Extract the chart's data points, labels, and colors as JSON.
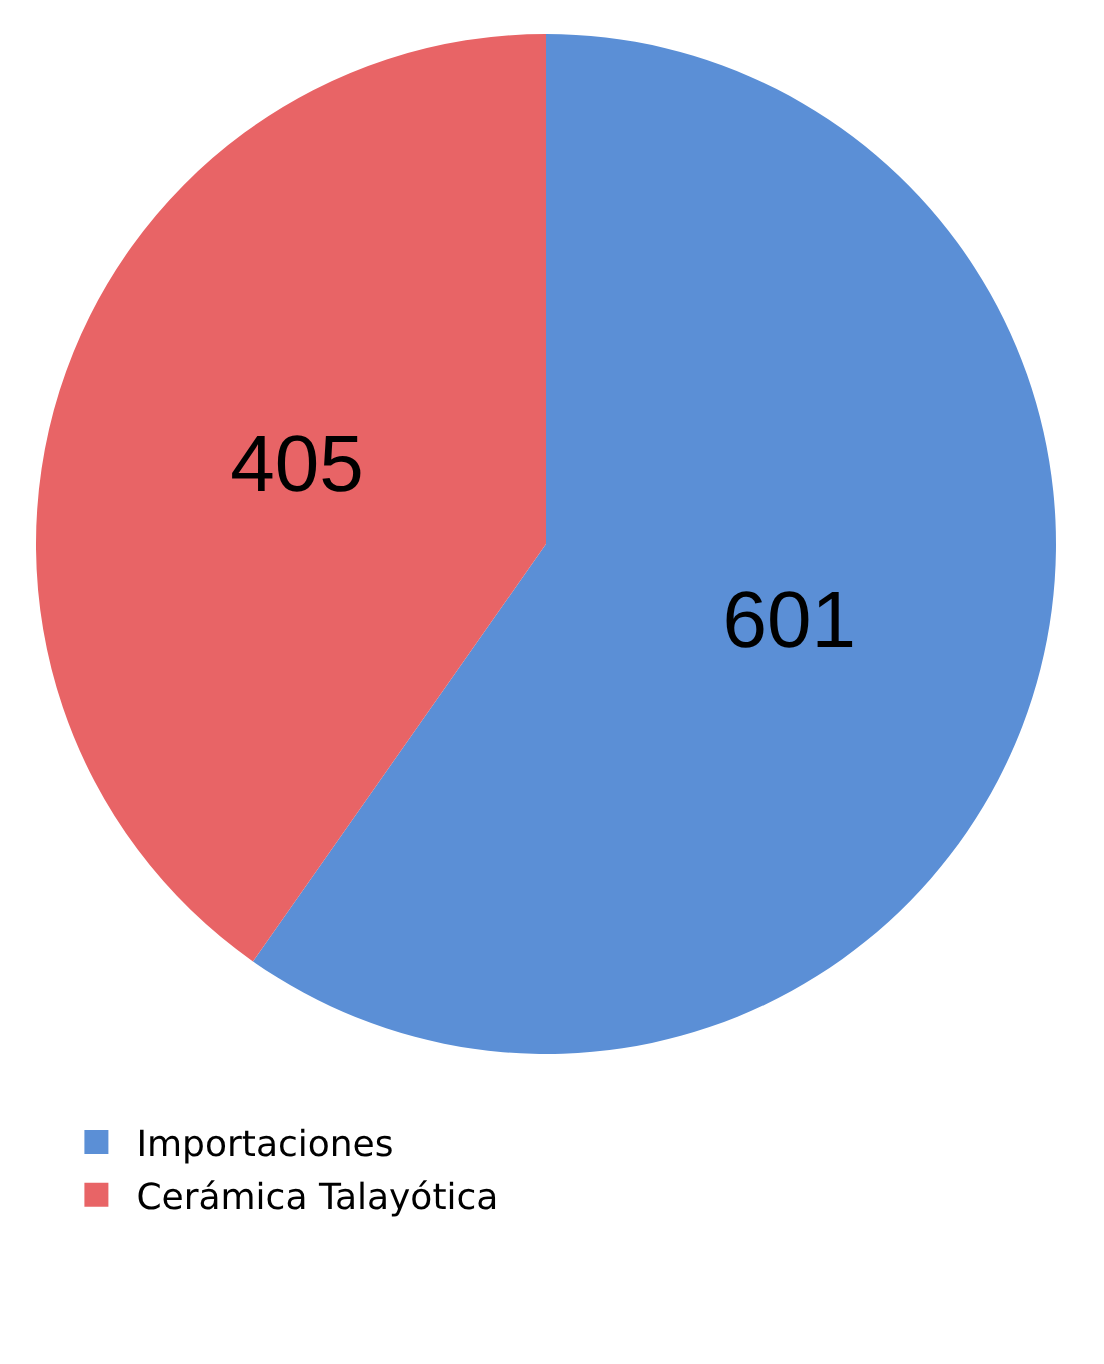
{
  "chart_data": {
    "type": "pie",
    "categories": [
      "Importaciones",
      "Cerámica Talayótica"
    ],
    "values": [
      601,
      405
    ],
    "colors": [
      "#5b8fd6",
      "#e86466"
    ],
    "data_labels": true,
    "legend": "bottom left"
  }
}
